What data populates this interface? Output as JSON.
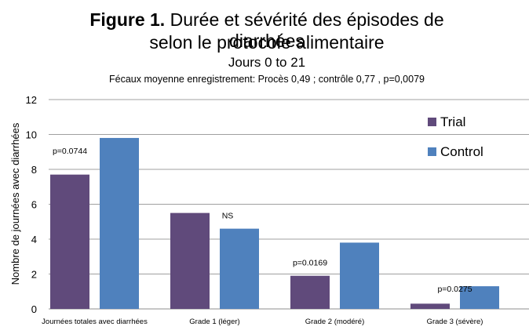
{
  "chart_data": {
    "type": "bar",
    "title_bold": "Figure 1.",
    "title_rest": "Durée et sévérité des épisodes de diarrhées",
    "title_line2": "selon le protocole alimentaire",
    "subtitle": "Jours 0 to 21",
    "caption": "Fécaux moyenne enregistrement: Procès 0,49 ; contrôle 0,77 , p=0,0079",
    "ylabel": "Nombre de journées avec diarrhées",
    "xlabel": "",
    "ylim": [
      0,
      12
    ],
    "yticks": [
      0,
      2,
      4,
      6,
      8,
      10,
      12
    ],
    "grid": true,
    "legend_position": "top-right",
    "categories": [
      "Journées totales avec diarrhées",
      "Grade 1 (léger)",
      "Grade 2 (modéré)",
      "Grade 3 (sévère)"
    ],
    "series": [
      {
        "name": "Trial",
        "color": "#604a7b",
        "values": [
          7.7,
          5.5,
          1.9,
          0.3
        ]
      },
      {
        "name": "Control",
        "color": "#4f81bd",
        "values": [
          9.8,
          4.6,
          3.8,
          1.3
        ]
      }
    ],
    "annotations": [
      "p=0.0744",
      "NS",
      "p=0.0169",
      "p=0.0275"
    ]
  }
}
